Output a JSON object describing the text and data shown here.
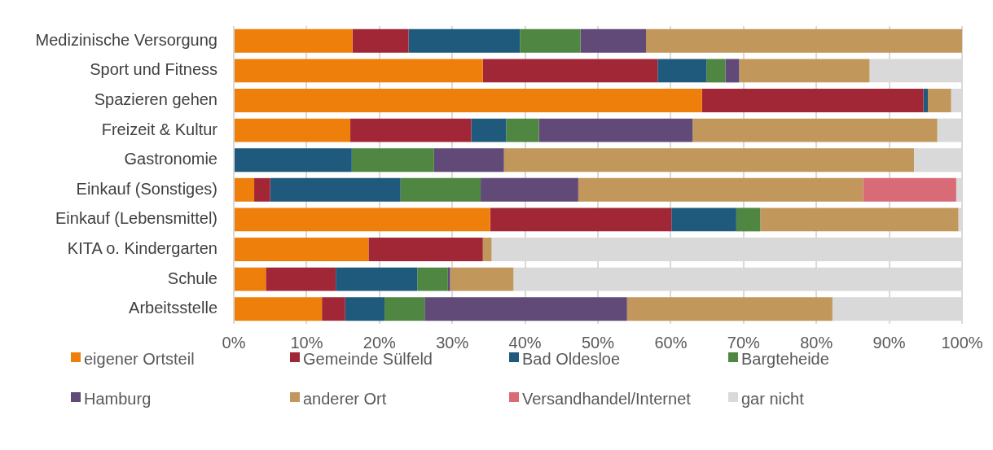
{
  "chart_data": {
    "type": "bar",
    "orientation": "horizontal",
    "stacked": true,
    "categories": [
      "Medizinische Versorgung",
      "Sport und Fitness",
      "Spazieren gehen",
      "Freizeit & Kultur",
      "Gastronomie",
      "Einkauf (Sonstiges)",
      "Einkauf (Lebensmittel)",
      "KITA o. Kindergarten",
      "Schule",
      "Arbeitsstelle"
    ],
    "series": [
      {
        "name": "eigener Ortsteil",
        "color": "#ef7f0b",
        "values": [
          16.3,
          34.2,
          64.3,
          16.0,
          0,
          2.8,
          35.2,
          18.5,
          4.4,
          12.1
        ]
      },
      {
        "name": "Gemeinde Sülfeld",
        "color": "#a12737",
        "values": [
          7.7,
          24.0,
          30.4,
          16.6,
          0,
          2.2,
          24.9,
          15.7,
          9.6,
          3.2
        ]
      },
      {
        "name": "Bad Oldesloe",
        "color": "#1f5a7d",
        "values": [
          15.3,
          6.7,
          0.6,
          4.8,
          16.2,
          17.9,
          8.9,
          0,
          11.2,
          5.4
        ]
      },
      {
        "name": "Bargteheide",
        "color": "#4f8742",
        "values": [
          8.3,
          2.6,
          0,
          4.5,
          11.3,
          11.0,
          3.3,
          0,
          4.2,
          5.5
        ]
      },
      {
        "name": "Hamburg",
        "color": "#614a77",
        "values": [
          9.0,
          1.9,
          0,
          21.1,
          9.6,
          13.4,
          0,
          0,
          0.3,
          27.8
        ]
      },
      {
        "name": "anderer Ort",
        "color": "#c1975b",
        "values": [
          43.4,
          17.9,
          3.2,
          33.6,
          56.3,
          39.1,
          27.2,
          1.2,
          8.7,
          28.2
        ]
      },
      {
        "name": "Versandhandel/Internet",
        "color": "#d96b76",
        "values": [
          0,
          0,
          0,
          0,
          0,
          12.8,
          0,
          0,
          0,
          0
        ]
      },
      {
        "name": "gar nicht",
        "color": "#d9d9d9",
        "values": [
          0,
          12.7,
          1.5,
          3.4,
          6.6,
          0.8,
          0.5,
          64.6,
          61.6,
          17.8
        ]
      }
    ],
    "xlim": [
      0,
      100
    ],
    "xticks": [
      {
        "value": 0,
        "label": "0%"
      },
      {
        "value": 10,
        "label": "10%"
      },
      {
        "value": 20,
        "label": "20%"
      },
      {
        "value": 30,
        "label": "30%"
      },
      {
        "value": 40,
        "label": "40%"
      },
      {
        "value": 50,
        "label": "50%"
      },
      {
        "value": 60,
        "label": "60%"
      },
      {
        "value": 70,
        "label": "70%"
      },
      {
        "value": 80,
        "label": "80%"
      },
      {
        "value": 90,
        "label": "90%"
      },
      {
        "value": 100,
        "label": "100%"
      }
    ],
    "grid": "x",
    "legend": "bottom"
  }
}
